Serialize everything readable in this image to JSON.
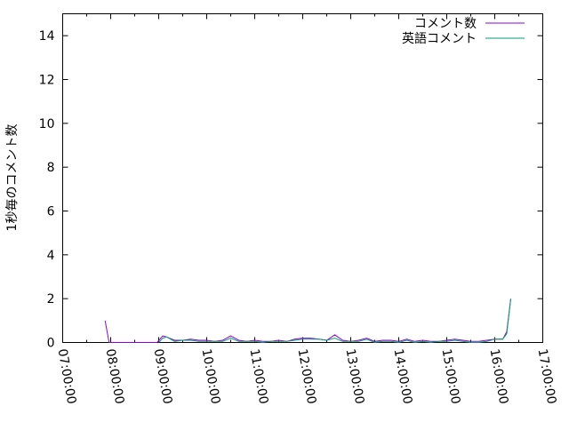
{
  "chart_data": {
    "type": "line",
    "title": "",
    "xlabel": "",
    "ylabel": "1秒毎のコメント数",
    "xlim": [
      "07:00:00",
      "17:00:00"
    ],
    "ylim": [
      0,
      15
    ],
    "x_ticks": [
      "07:00:00",
      "08:00:00",
      "09:00:00",
      "10:00:00",
      "11:00:00",
      "12:00:00",
      "13:00:00",
      "14:00:00",
      "15:00:00",
      "16:00:00",
      "17:00:00"
    ],
    "y_ticks": [
      "0",
      "2",
      "4",
      "6",
      "8",
      "10",
      "12",
      "14"
    ],
    "grid": false,
    "legend": "top-right",
    "series": [
      {
        "name": "コメント数",
        "color": "#9400d3",
        "x": [
          "07:53",
          "07:58",
          "08:58",
          "09:05",
          "09:10",
          "09:20",
          "09:30",
          "09:40",
          "09:50",
          "10:00",
          "10:10",
          "10:20",
          "10:30",
          "10:40",
          "10:50",
          "11:00",
          "11:10",
          "11:20",
          "11:30",
          "11:40",
          "11:50",
          "12:00",
          "12:10",
          "12:20",
          "12:30",
          "12:40",
          "12:50",
          "13:00",
          "13:10",
          "13:20",
          "13:30",
          "13:40",
          "13:50",
          "14:00",
          "14:10",
          "14:20",
          "14:30",
          "14:40",
          "14:50",
          "15:00",
          "15:10",
          "15:20",
          "15:30",
          "15:40",
          "15:50",
          "16:00",
          "16:10",
          "16:15",
          "16:20"
        ],
        "y": [
          1.0,
          0.0,
          0.0,
          0.3,
          0.25,
          0.1,
          0.1,
          0.15,
          0.1,
          0.1,
          0.05,
          0.1,
          0.3,
          0.1,
          0.05,
          0.1,
          0.05,
          0.05,
          0.1,
          0.05,
          0.15,
          0.2,
          0.2,
          0.15,
          0.1,
          0.35,
          0.1,
          0.05,
          0.1,
          0.2,
          0.05,
          0.1,
          0.1,
          0.05,
          0.15,
          0.05,
          0.1,
          0.05,
          0.05,
          0.1,
          0.15,
          0.1,
          0.05,
          0.05,
          0.1,
          0.15,
          0.15,
          0.5,
          2.0
        ]
      },
      {
        "name": "英語コメント",
        "color": "#009e73",
        "x": [
          "09:00",
          "09:05",
          "09:10",
          "09:20",
          "09:30",
          "09:40",
          "09:50",
          "10:00",
          "10:10",
          "10:20",
          "10:30",
          "10:40",
          "10:50",
          "11:00",
          "11:10",
          "11:20",
          "11:30",
          "11:40",
          "11:50",
          "12:00",
          "12:10",
          "12:20",
          "12:30",
          "12:40",
          "12:50",
          "13:00",
          "13:10",
          "13:20",
          "13:30",
          "13:40",
          "13:50",
          "14:00",
          "14:10",
          "14:20",
          "14:30",
          "14:40",
          "14:50",
          "15:00",
          "15:10",
          "15:20",
          "15:30",
          "15:40",
          "15:50",
          "16:00",
          "16:10",
          "16:15",
          "16:20"
        ],
        "y": [
          0.0,
          0.2,
          0.25,
          0.05,
          0.1,
          0.1,
          0.05,
          0.05,
          0.05,
          0.05,
          0.2,
          0.05,
          0.05,
          0.05,
          0.0,
          0.05,
          0.05,
          0.05,
          0.1,
          0.15,
          0.15,
          0.15,
          0.1,
          0.2,
          0.05,
          0.05,
          0.05,
          0.15,
          0.0,
          0.05,
          0.05,
          0.0,
          0.1,
          0.0,
          0.05,
          0.0,
          0.05,
          0.05,
          0.1,
          0.05,
          0.0,
          0.0,
          0.05,
          0.15,
          0.15,
          0.4,
          2.0
        ]
      }
    ]
  }
}
